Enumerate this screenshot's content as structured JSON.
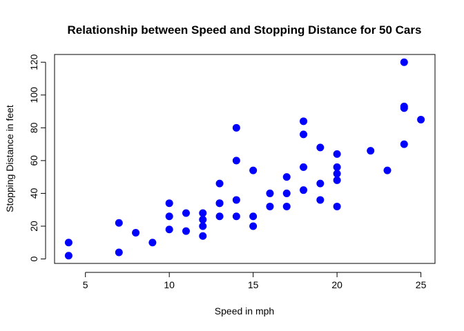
{
  "chart_data": {
    "type": "scatter",
    "title": "Relationship between Speed and Stopping Distance for 50 Cars",
    "xlabel": "Speed in mph",
    "ylabel": "Stopping Distance in feet",
    "xlim": [
      3.16,
      25.84
    ],
    "ylim": [
      -2.72,
      124.72
    ],
    "xticks": [
      5,
      10,
      15,
      20,
      25
    ],
    "yticks": [
      0,
      20,
      40,
      60,
      80,
      100,
      120
    ],
    "point_color": "#0000ff",
    "grid": false,
    "legend": "none",
    "x": [
      4,
      4,
      7,
      7,
      8,
      9,
      10,
      10,
      10,
      11,
      11,
      12,
      12,
      12,
      12,
      13,
      13,
      13,
      13,
      14,
      14,
      14,
      14,
      15,
      15,
      15,
      16,
      16,
      17,
      17,
      17,
      18,
      18,
      18,
      18,
      19,
      19,
      19,
      20,
      20,
      20,
      20,
      20,
      22,
      23,
      24,
      24,
      24,
      24,
      25
    ],
    "y": [
      2,
      10,
      4,
      22,
      16,
      10,
      18,
      26,
      34,
      17,
      28,
      14,
      20,
      24,
      28,
      26,
      34,
      34,
      46,
      26,
      36,
      60,
      80,
      20,
      26,
      54,
      32,
      40,
      32,
      40,
      50,
      42,
      56,
      76,
      84,
      36,
      46,
      68,
      32,
      48,
      52,
      56,
      64,
      66,
      54,
      70,
      92,
      93,
      120,
      85
    ]
  }
}
